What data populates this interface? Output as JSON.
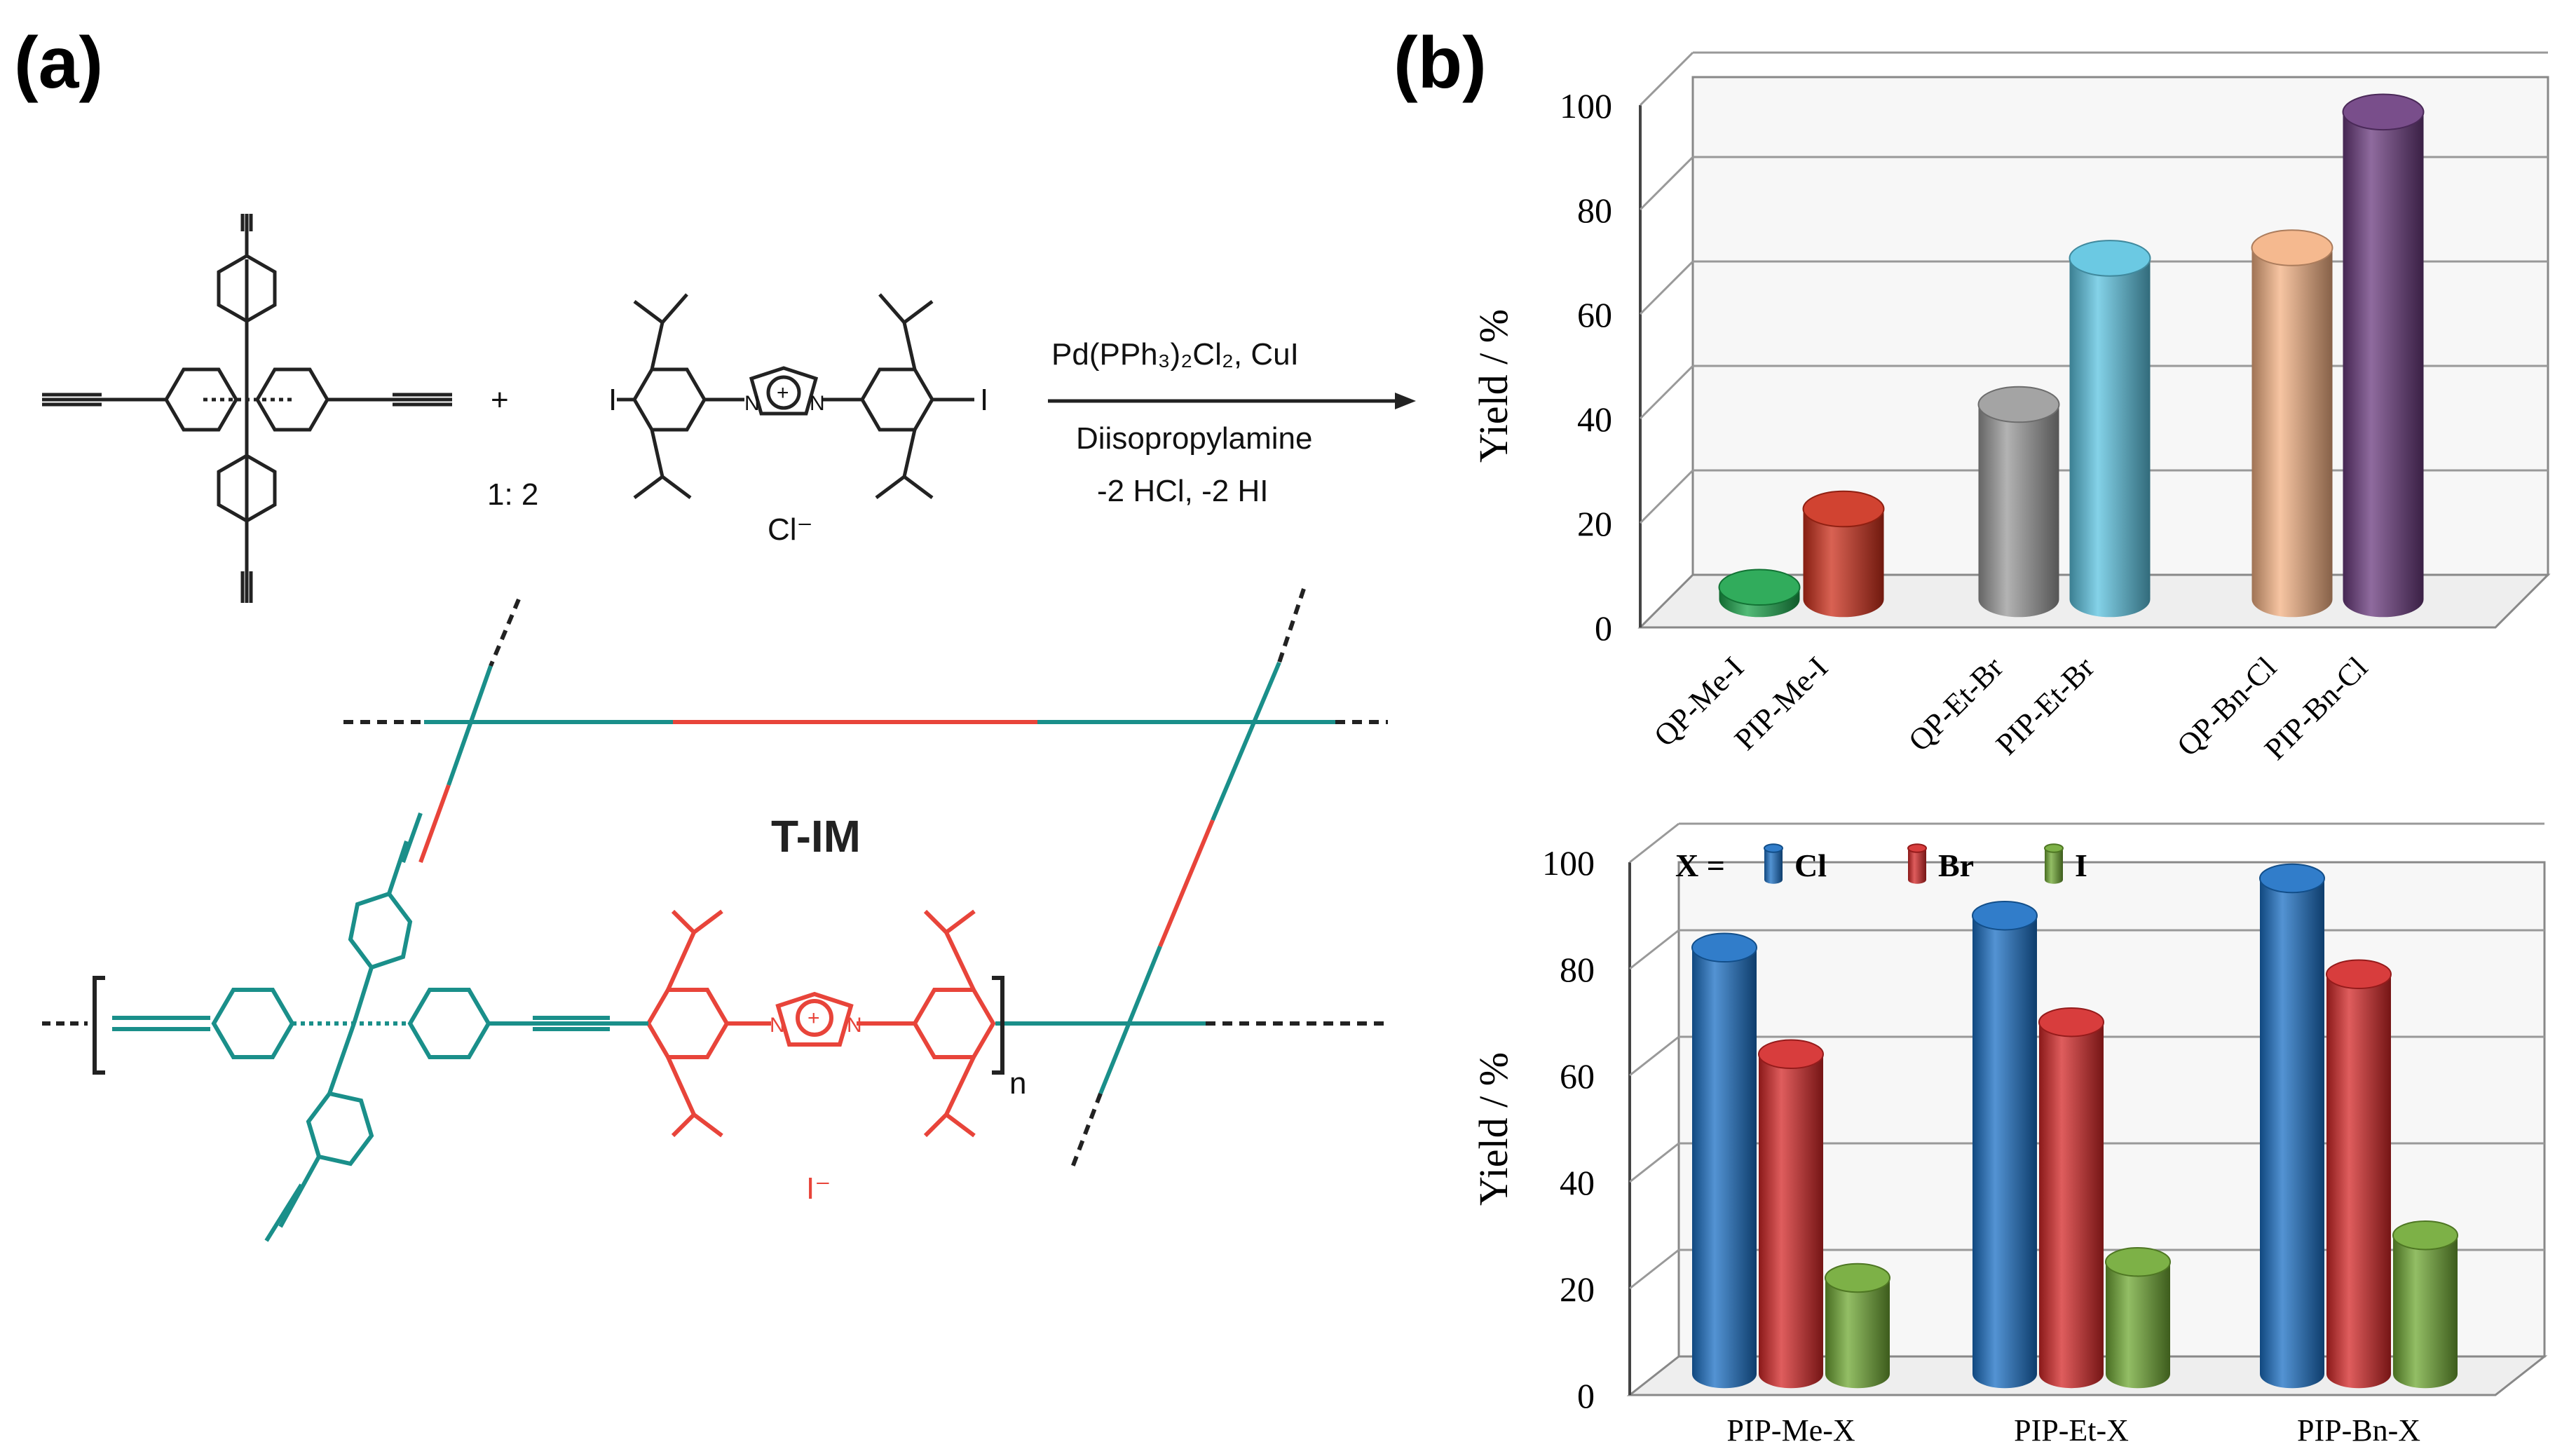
{
  "panel_labels": {
    "a": "(a)",
    "b": "(b)"
  },
  "scheme": {
    "ratio": "1: 2",
    "plus": "+",
    "counter_ion": "Cl⁻",
    "iodide": "I⁻",
    "iodo": "I",
    "n_sub": "n",
    "product_name": "T-IM",
    "conditions": {
      "catalyst": "Pd(PPh₃)₂Cl₂, CuI",
      "base": "Diisopropylamine",
      "byproducts": "-2 HCl, -2 HI"
    }
  },
  "chart_data": [
    {
      "type": "bar",
      "style": "3d-cylinder",
      "title": "",
      "xlabel": "",
      "ylabel": "Yield / %",
      "ylim": [
        0,
        100
      ],
      "yticks": [
        0,
        20,
        40,
        60,
        80,
        100
      ],
      "grid": true,
      "categories": [
        "QP-Me-I",
        "PIP-Me-I",
        "QP-Et-Br",
        "PIP-Et-Br",
        "QP-Bn-Cl",
        "PIP-Bn-Cl"
      ],
      "values": [
        5,
        20,
        40,
        68,
        70,
        96
      ],
      "colors": [
        "#1aa34a",
        "#cc2e1a",
        "#9a9a9a",
        "#5bc3e0",
        "#f4b183",
        "#6a3a7e"
      ]
    },
    {
      "type": "bar",
      "style": "3d-cylinder",
      "title": "",
      "xlabel": "",
      "ylabel": "Yield / %",
      "ylim": [
        0,
        100
      ],
      "yticks": [
        0,
        20,
        40,
        60,
        80,
        100
      ],
      "grid": true,
      "legend_prefix": "X =",
      "categories": [
        "PIP-Me-X",
        "PIP-Et-X",
        "PIP-Bn-X"
      ],
      "series": [
        {
          "name": "Cl",
          "values": [
            82,
            88,
            95
          ],
          "color": "#1a6fc4"
        },
        {
          "name": "Br",
          "values": [
            62,
            68,
            77
          ],
          "color": "#d42727"
        },
        {
          "name": "I",
          "values": [
            20,
            23,
            28
          ],
          "color": "#6fa832"
        }
      ]
    }
  ]
}
